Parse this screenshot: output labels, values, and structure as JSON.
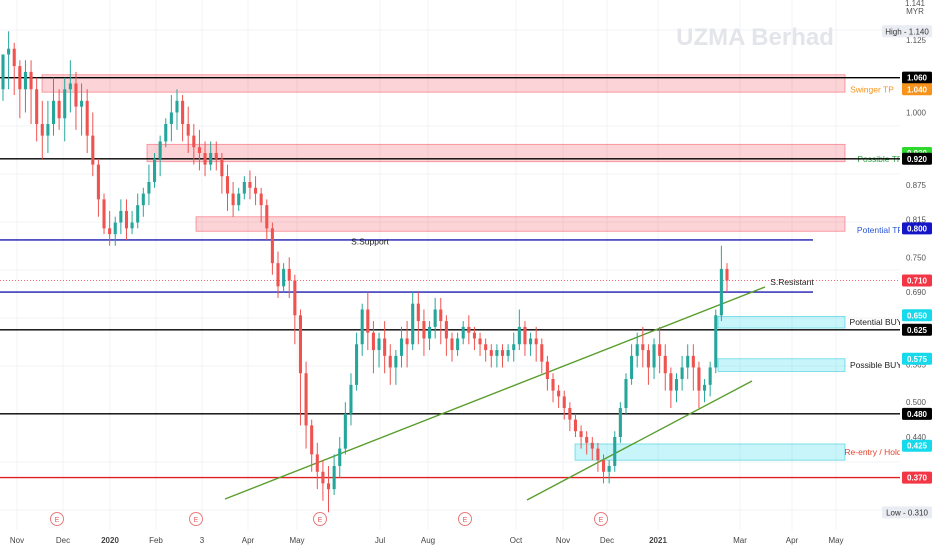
{
  "header": {
    "currency_top": "1.141",
    "currency": "MYR"
  },
  "chart_data": {
    "type": "candlestick",
    "title": "UZMA Berhad",
    "yaxis": {
      "ylim": [
        0.295,
        1.155
      ],
      "ticks": [
        1.125,
        1.0,
        0.875,
        0.815,
        0.75,
        0.69,
        0.565,
        0.5,
        0.44
      ]
    },
    "xaxis": {
      "ticks": [
        "Nov",
        "Dec",
        "2020",
        "Feb",
        "3",
        "Apr",
        "May",
        "Jul",
        "Aug",
        "Oct",
        "Nov",
        "Dec",
        "2021",
        "Mar",
        "Apr",
        "May"
      ],
      "bold_ticks": [
        "2020",
        "2021"
      ]
    },
    "price_labels": [
      {
        "text": "High - 1.140",
        "value": 1.14,
        "style": "plain"
      },
      {
        "text": "Low - 0.310",
        "value": 0.31,
        "style": "plain"
      },
      {
        "text": "1.060",
        "value": 1.06,
        "style": "black"
      },
      {
        "text": "1.040",
        "value": 1.04,
        "style": "orange"
      },
      {
        "text": "0.930",
        "value": 0.93,
        "style": "green"
      },
      {
        "text": "0.920",
        "value": 0.92,
        "style": "black"
      },
      {
        "text": "0.800",
        "value": 0.8,
        "style": "blue"
      },
      {
        "text": "0.710",
        "value": 0.71,
        "style": "red"
      },
      {
        "text": "0.650",
        "value": 0.65,
        "style": "cyan"
      },
      {
        "text": "0.625",
        "value": 0.625,
        "style": "black"
      },
      {
        "text": "0.575",
        "value": 0.575,
        "style": "cyan"
      },
      {
        "text": "0.480",
        "value": 0.48,
        "style": "black"
      },
      {
        "text": "0.425",
        "value": 0.425,
        "style": "cyan"
      },
      {
        "text": "0.370",
        "value": 0.37,
        "style": "red"
      }
    ],
    "horizontal_levels": [
      {
        "value": 1.06,
        "color": "#000000"
      },
      {
        "value": 0.92,
        "color": "#000000"
      },
      {
        "value": 0.78,
        "color": "#1a1ab0"
      },
      {
        "value": 0.69,
        "color": "#1a1ab0"
      },
      {
        "value": 0.625,
        "color": "#000000"
      },
      {
        "value": 0.48,
        "color": "#000000"
      },
      {
        "value": 0.37,
        "color": "#e02020"
      }
    ],
    "zones": [
      {
        "label": "Swinger TP",
        "y_top": 1.065,
        "y_bottom": 1.035,
        "color": "red",
        "label_color": "#f7931a"
      },
      {
        "label": "Possible TP",
        "y_top": 0.945,
        "y_bottom": 0.915,
        "color": "red",
        "label_color": "#2e9e3f"
      },
      {
        "label": "Potential TP",
        "y_top": 0.82,
        "y_bottom": 0.795,
        "color": "red",
        "label_color": "#2a55d6"
      },
      {
        "label": "Potential BUY",
        "y_top": 0.648,
        "y_bottom": 0.628,
        "color": "cyan",
        "label_color": "#222222"
      },
      {
        "label": "Possible BUY",
        "y_top": 0.575,
        "y_bottom": 0.553,
        "color": "cyan",
        "label_color": "#222222"
      },
      {
        "label": "Re-entry / Hold",
        "y_top": 0.428,
        "y_bottom": 0.4,
        "color": "cyan",
        "label_color": "#e0452e"
      }
    ],
    "text_annotations": [
      {
        "text": "S.Support",
        "value": 0.772
      },
      {
        "text": "S.Resistant",
        "value": 0.702
      }
    ],
    "last_price": 0.71,
    "candles": [
      [
        1.04,
        1.1,
        1.1,
        1.02
      ],
      [
        1.1,
        1.14,
        1.11,
        1.04
      ],
      [
        1.11,
        1.12,
        1.08,
        1.03
      ],
      [
        1.08,
        1.09,
        1.04,
        0.99
      ],
      [
        1.04,
        1.09,
        1.07,
        1.0
      ],
      [
        1.07,
        1.09,
        1.04,
        0.98
      ],
      [
        1.04,
        1.06,
        0.98,
        0.95
      ],
      [
        0.98,
        1.02,
        0.96,
        0.92
      ],
      [
        0.96,
        1.02,
        0.98,
        0.93
      ],
      [
        0.98,
        1.06,
        1.02,
        0.96
      ],
      [
        1.02,
        1.04,
        0.99,
        0.97
      ],
      [
        0.99,
        1.06,
        1.04,
        0.95
      ],
      [
        1.04,
        1.09,
        1.05,
        1.0
      ],
      [
        1.05,
        1.07,
        1.01,
        0.97
      ],
      [
        1.01,
        1.05,
        1.02,
        0.96
      ],
      [
        1.02,
        1.04,
        0.96,
        0.93
      ],
      [
        0.96,
        1.0,
        0.91,
        0.89
      ],
      [
        0.91,
        0.92,
        0.85,
        0.82
      ],
      [
        0.85,
        0.86,
        0.8,
        0.79
      ],
      [
        0.8,
        0.83,
        0.79,
        0.77
      ],
      [
        0.79,
        0.82,
        0.81,
        0.77
      ],
      [
        0.81,
        0.85,
        0.83,
        0.79
      ],
      [
        0.83,
        0.85,
        0.8,
        0.78
      ],
      [
        0.8,
        0.83,
        0.81,
        0.79
      ],
      [
        0.81,
        0.86,
        0.84,
        0.8
      ],
      [
        0.84,
        0.87,
        0.86,
        0.82
      ],
      [
        0.86,
        0.91,
        0.88,
        0.84
      ],
      [
        0.88,
        0.93,
        0.92,
        0.87
      ],
      [
        0.92,
        0.96,
        0.95,
        0.89
      ],
      [
        0.95,
        0.99,
        0.98,
        0.94
      ],
      [
        0.98,
        1.03,
        1.0,
        0.95
      ],
      [
        1.0,
        1.04,
        1.02,
        0.97
      ],
      [
        1.02,
        1.03,
        0.98,
        0.95
      ],
      [
        0.98,
        1.01,
        0.96,
        0.93
      ],
      [
        0.96,
        0.98,
        0.94,
        0.91
      ],
      [
        0.94,
        0.97,
        0.93,
        0.9
      ],
      [
        0.93,
        0.95,
        0.91,
        0.89
      ],
      [
        0.91,
        0.95,
        0.93,
        0.9
      ],
      [
        0.93,
        0.95,
        0.92,
        0.9
      ],
      [
        0.92,
        0.93,
        0.89,
        0.86
      ],
      [
        0.89,
        0.91,
        0.86,
        0.83
      ],
      [
        0.86,
        0.88,
        0.84,
        0.82
      ],
      [
        0.84,
        0.87,
        0.86,
        0.83
      ],
      [
        0.86,
        0.89,
        0.88,
        0.85
      ],
      [
        0.88,
        0.9,
        0.87,
        0.85
      ],
      [
        0.87,
        0.89,
        0.86,
        0.84
      ],
      [
        0.86,
        0.87,
        0.84,
        0.81
      ],
      [
        0.84,
        0.85,
        0.8,
        0.78
      ],
      [
        0.8,
        0.81,
        0.74,
        0.72
      ],
      [
        0.74,
        0.76,
        0.7,
        0.68
      ],
      [
        0.7,
        0.74,
        0.73,
        0.69
      ],
      [
        0.73,
        0.75,
        0.71,
        0.68
      ],
      [
        0.71,
        0.72,
        0.65,
        0.6
      ],
      [
        0.65,
        0.66,
        0.55,
        0.46
      ],
      [
        0.55,
        0.57,
        0.46,
        0.42
      ],
      [
        0.46,
        0.47,
        0.41,
        0.38
      ],
      [
        0.41,
        0.43,
        0.38,
        0.35
      ],
      [
        0.38,
        0.4,
        0.36,
        0.33
      ],
      [
        0.36,
        0.39,
        0.35,
        0.31
      ],
      [
        0.35,
        0.41,
        0.39,
        0.34
      ],
      [
        0.39,
        0.44,
        0.42,
        0.37
      ],
      [
        0.42,
        0.5,
        0.48,
        0.41
      ],
      [
        0.48,
        0.55,
        0.53,
        0.46
      ],
      [
        0.53,
        0.62,
        0.6,
        0.52
      ],
      [
        0.6,
        0.67,
        0.66,
        0.58
      ],
      [
        0.66,
        0.69,
        0.62,
        0.59
      ],
      [
        0.62,
        0.64,
        0.59,
        0.55
      ],
      [
        0.59,
        0.62,
        0.61,
        0.56
      ],
      [
        0.61,
        0.64,
        0.58,
        0.55
      ],
      [
        0.58,
        0.6,
        0.56,
        0.53
      ],
      [
        0.56,
        0.59,
        0.58,
        0.53
      ],
      [
        0.58,
        0.63,
        0.61,
        0.56
      ],
      [
        0.61,
        0.64,
        0.6,
        0.56
      ],
      [
        0.6,
        0.69,
        0.67,
        0.59
      ],
      [
        0.67,
        0.69,
        0.64,
        0.6
      ],
      [
        0.64,
        0.66,
        0.61,
        0.58
      ],
      [
        0.61,
        0.64,
        0.63,
        0.59
      ],
      [
        0.63,
        0.68,
        0.66,
        0.61
      ],
      [
        0.66,
        0.68,
        0.64,
        0.6
      ],
      [
        0.64,
        0.65,
        0.61,
        0.58
      ],
      [
        0.61,
        0.62,
        0.59,
        0.57
      ],
      [
        0.59,
        0.62,
        0.61,
        0.58
      ],
      [
        0.61,
        0.64,
        0.63,
        0.6
      ],
      [
        0.63,
        0.65,
        0.62,
        0.6
      ],
      [
        0.62,
        0.63,
        0.61,
        0.59
      ],
      [
        0.61,
        0.62,
        0.6,
        0.58
      ],
      [
        0.6,
        0.61,
        0.59,
        0.57
      ],
      [
        0.59,
        0.6,
        0.58,
        0.56
      ],
      [
        0.58,
        0.6,
        0.59,
        0.56
      ],
      [
        0.59,
        0.6,
        0.58,
        0.56
      ],
      [
        0.58,
        0.6,
        0.59,
        0.57
      ],
      [
        0.59,
        0.62,
        0.6,
        0.57
      ],
      [
        0.6,
        0.66,
        0.63,
        0.59
      ],
      [
        0.63,
        0.64,
        0.6,
        0.58
      ],
      [
        0.6,
        0.62,
        0.61,
        0.58
      ],
      [
        0.61,
        0.63,
        0.6,
        0.57
      ],
      [
        0.6,
        0.61,
        0.57,
        0.55
      ],
      [
        0.57,
        0.58,
        0.54,
        0.52
      ],
      [
        0.54,
        0.55,
        0.52,
        0.5
      ],
      [
        0.52,
        0.53,
        0.51,
        0.49
      ],
      [
        0.51,
        0.52,
        0.49,
        0.47
      ],
      [
        0.49,
        0.5,
        0.47,
        0.45
      ],
      [
        0.47,
        0.48,
        0.45,
        0.44
      ],
      [
        0.45,
        0.46,
        0.44,
        0.42
      ],
      [
        0.44,
        0.45,
        0.43,
        0.41
      ],
      [
        0.43,
        0.44,
        0.42,
        0.4
      ],
      [
        0.42,
        0.43,
        0.4,
        0.38
      ],
      [
        0.4,
        0.41,
        0.38,
        0.36
      ],
      [
        0.38,
        0.4,
        0.39,
        0.36
      ],
      [
        0.39,
        0.45,
        0.44,
        0.38
      ],
      [
        0.44,
        0.5,
        0.49,
        0.43
      ],
      [
        0.49,
        0.55,
        0.54,
        0.48
      ],
      [
        0.54,
        0.6,
        0.58,
        0.53
      ],
      [
        0.58,
        0.62,
        0.6,
        0.56
      ],
      [
        0.6,
        0.63,
        0.59,
        0.56
      ],
      [
        0.59,
        0.6,
        0.56,
        0.53
      ],
      [
        0.56,
        0.61,
        0.6,
        0.54
      ],
      [
        0.6,
        0.63,
        0.58,
        0.55
      ],
      [
        0.58,
        0.6,
        0.55,
        0.52
      ],
      [
        0.55,
        0.56,
        0.52,
        0.49
      ],
      [
        0.52,
        0.55,
        0.54,
        0.5
      ],
      [
        0.54,
        0.58,
        0.56,
        0.52
      ],
      [
        0.56,
        0.6,
        0.58,
        0.54
      ],
      [
        0.58,
        0.6,
        0.56,
        0.52
      ],
      [
        0.56,
        0.57,
        0.52,
        0.49
      ],
      [
        0.52,
        0.54,
        0.53,
        0.5
      ],
      [
        0.53,
        0.57,
        0.56,
        0.51
      ],
      [
        0.56,
        0.66,
        0.65,
        0.55
      ],
      [
        0.65,
        0.77,
        0.73,
        0.64
      ],
      [
        0.73,
        0.74,
        0.71,
        0.69
      ]
    ]
  }
}
